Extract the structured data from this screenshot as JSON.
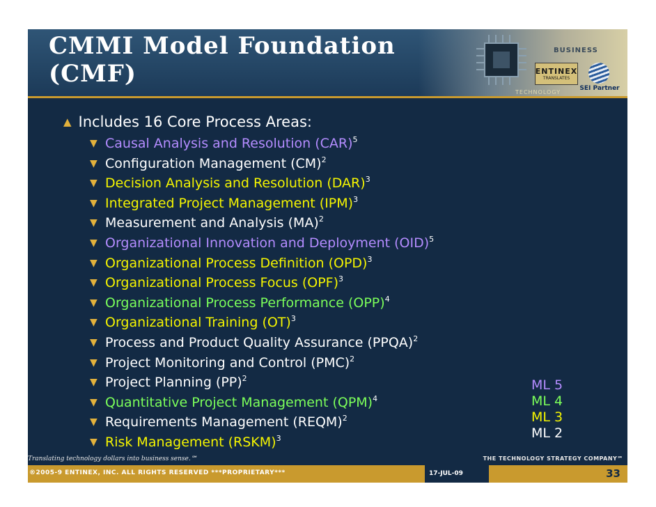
{
  "slide": {
    "title_line1": "CMMI Model Foundation",
    "title_line2": "(CMF)",
    "logo": {
      "business": "BUSINESS",
      "company": "ENTINEX",
      "company_sub": "TRANSLATES",
      "technology": "TECHNOLOGY",
      "partner": "SEI Partner"
    },
    "main_bullet": "Includes 16 Core Process Areas:",
    "process_areas": [
      {
        "name": "Causal Analysis and Resolution (CAR)",
        "level": "5",
        "color": "#b48cff"
      },
      {
        "name": "Configuration Management (CM)",
        "level": "2",
        "color": "#ffffff"
      },
      {
        "name": "Decision Analysis and Resolution (DAR)",
        "level": "3",
        "color": "#f5f500"
      },
      {
        "name": "Integrated Project Management (IPM)",
        "level": "3",
        "color": "#f5f500"
      },
      {
        "name": "Measurement and Analysis (MA)",
        "level": "2",
        "color": "#ffffff"
      },
      {
        "name": "Organizational Innovation and Deployment (OID)",
        "level": "5",
        "color": "#b48cff"
      },
      {
        "name": "Organizational Process Definition (OPD)",
        "level": "3",
        "color": "#f5f500"
      },
      {
        "name": "Organizational Process Focus (OPF)",
        "level": "3",
        "color": "#f5f500"
      },
      {
        "name": "Organizational Process Performance (OPP)",
        "level": "4",
        "color": "#7cff5a"
      },
      {
        "name": "Organizational Training (OT)",
        "level": "3",
        "color": "#f5f500"
      },
      {
        "name": "Process and Product Quality Assurance (PPQA)",
        "level": "2",
        "color": "#ffffff"
      },
      {
        "name": "Project Monitoring and Control (PMC)",
        "level": "2",
        "color": "#ffffff"
      },
      {
        "name": "Project Planning (PP)",
        "level": "2",
        "color": "#ffffff"
      },
      {
        "name": "Quantitative Project Management (QPM)",
        "level": "4",
        "color": "#7cff5a"
      },
      {
        "name": "Requirements Management (REQM)",
        "level": "2",
        "color": "#ffffff"
      },
      {
        "name": "Risk Management (RSKM)",
        "level": "3",
        "color": "#f5f500"
      }
    ],
    "maturity_legend": [
      {
        "label": "ML 5",
        "color": "#b48cff"
      },
      {
        "label": "ML 4",
        "color": "#7cff5a"
      },
      {
        "label": "ML 3",
        "color": "#f5f500"
      },
      {
        "label": "ML 2",
        "color": "#ffffff"
      }
    ],
    "tagline": "Translating technology dollars into business sense.℠",
    "tagline_right": "THE TECHNOLOGY STRATEGY COMPANY℠",
    "copyright": "®2005-9 ENTINEX, INC. ALL RIGHTS RESERVED  ***PROPRIETARY***",
    "date": "17-JUL-09",
    "page_number": "33"
  }
}
